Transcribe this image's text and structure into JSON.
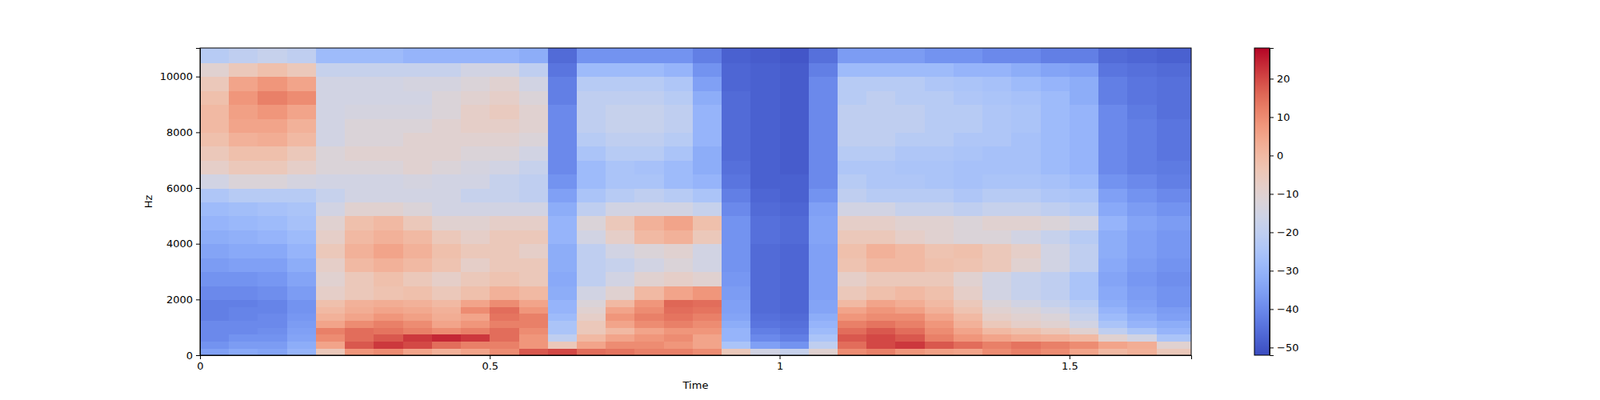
{
  "chart_data": {
    "type": "heatmap",
    "x_label": "Time",
    "y_label": "Hz",
    "xlim": [
      0,
      1.71
    ],
    "ylim": [
      0,
      11025
    ],
    "xticks": [
      0,
      0.5,
      1,
      1.5
    ],
    "yticks": [
      0,
      2000,
      4000,
      6000,
      8000,
      10000
    ],
    "zlim": [
      -52,
      28
    ],
    "zticks": [
      {
        "value": -50,
        "label": "−50"
      },
      {
        "value": -40,
        "label": "−40"
      },
      {
        "value": -30,
        "label": "−30"
      },
      {
        "value": -20,
        "label": "−20"
      },
      {
        "value": -10,
        "label": "−10"
      },
      0,
      10,
      20
    ],
    "x": [
      0,
      0.05,
      0.1,
      0.15,
      0.2,
      0.25,
      0.3,
      0.35,
      0.4,
      0.45,
      0.5,
      0.55,
      0.6,
      0.65,
      0.7,
      0.75,
      0.8,
      0.85,
      0.9,
      0.95,
      1,
      1.05,
      1.1,
      1.15,
      1.2,
      1.25,
      1.3,
      1.35,
      1.4,
      1.45,
      1.5,
      1.55,
      1.6,
      1.65
    ],
    "y": [
      0,
      250,
      500,
      750,
      1000,
      1250,
      1500,
      1750,
      2000,
      2500,
      3000,
      3500,
      4000,
      4500,
      5000,
      5500,
      6000,
      6500,
      7000,
      7500,
      8000,
      8500,
      9000,
      9500,
      10000,
      10500
    ],
    "z": [
      [
        -35,
        -33,
        -34,
        -30,
        -5,
        8,
        10,
        5,
        2,
        5,
        10,
        18,
        20,
        15,
        14,
        12,
        12,
        10,
        -5,
        -15,
        -18,
        -10,
        10,
        12,
        8,
        6,
        5,
        10,
        12,
        10,
        5,
        0,
        2,
        -5
      ],
      [
        -38,
        -36,
        -36,
        -32,
        5,
        18,
        22,
        20,
        15,
        12,
        12,
        8,
        -5,
        5,
        10,
        10,
        8,
        5,
        -25,
        -35,
        -38,
        -20,
        15,
        20,
        22,
        18,
        15,
        12,
        14,
        12,
        10,
        5,
        3,
        -10
      ],
      [
        -40,
        -38,
        -38,
        -34,
        10,
        15,
        18,
        22,
        24,
        22,
        15,
        8,
        -20,
        0,
        5,
        8,
        10,
        5,
        -30,
        -40,
        -42,
        -25,
        18,
        20,
        18,
        12,
        8,
        5,
        3,
        2,
        0,
        -10,
        -15,
        -25
      ],
      [
        -40,
        -40,
        -39,
        -35,
        12,
        15,
        14,
        12,
        10,
        12,
        15,
        10,
        -25,
        -5,
        0,
        5,
        8,
        8,
        -30,
        -42,
        -44,
        -28,
        15,
        18,
        15,
        10,
        5,
        0,
        -2,
        -5,
        -10,
        -20,
        -25,
        -30
      ],
      [
        -40,
        -40,
        -40,
        -36,
        5,
        10,
        12,
        10,
        5,
        8,
        12,
        12,
        -25,
        -5,
        5,
        10,
        12,
        10,
        -32,
        -44,
        -45,
        -30,
        12,
        14,
        12,
        8,
        2,
        -5,
        -8,
        -10,
        -15,
        -25,
        -30,
        -32
      ],
      [
        -42,
        -41,
        -40,
        -37,
        2,
        5,
        8,
        6,
        3,
        5,
        14,
        12,
        -28,
        -8,
        8,
        12,
        14,
        12,
        -34,
        -45,
        -46,
        -32,
        8,
        10,
        10,
        5,
        0,
        -8,
        -10,
        -12,
        -18,
        -28,
        -32,
        -35
      ],
      [
        -42,
        -41,
        -41,
        -38,
        0,
        3,
        5,
        4,
        2,
        10,
        15,
        8,
        -30,
        -10,
        5,
        10,
        15,
        14,
        -35,
        -46,
        -47,
        -34,
        5,
        8,
        6,
        2,
        -3,
        -10,
        -12,
        -15,
        -20,
        -30,
        -34,
        -36
      ],
      [
        -42,
        -42,
        -41,
        -38,
        -2,
        2,
        3,
        2,
        0,
        5,
        10,
        5,
        -30,
        -12,
        0,
        8,
        16,
        15,
        -35,
        -46,
        -47,
        -34,
        0,
        5,
        3,
        0,
        -5,
        -12,
        -15,
        -18,
        -22,
        -32,
        -35,
        -38
      ],
      [
        -40,
        -40,
        -39,
        -36,
        -8,
        -5,
        -3,
        -2,
        -5,
        -2,
        2,
        0,
        -32,
        -15,
        -10,
        0,
        5,
        8,
        -36,
        -46,
        -47,
        -35,
        -5,
        -2,
        0,
        -2,
        -8,
        -15,
        -18,
        -20,
        -25,
        -33,
        -36,
        -38
      ],
      [
        -38,
        -38,
        -37,
        -34,
        -10,
        -5,
        -2,
        -5,
        -8,
        -5,
        -3,
        -5,
        -33,
        -20,
        -15,
        -10,
        -8,
        -10,
        -37,
        -46,
        -47,
        -35,
        -8,
        -5,
        -5,
        -5,
        -10,
        -15,
        -18,
        -20,
        -25,
        -34,
        -37,
        -39
      ],
      [
        -36,
        -35,
        -35,
        -32,
        -8,
        0,
        2,
        0,
        -3,
        -8,
        -5,
        -5,
        -32,
        -20,
        -18,
        -15,
        -12,
        -15,
        -38,
        -46,
        -47,
        -35,
        -3,
        0,
        0,
        -2,
        -3,
        -5,
        -10,
        -15,
        -20,
        -33,
        -36,
        -38
      ],
      [
        -34,
        -33,
        -33,
        -30,
        -5,
        2,
        5,
        2,
        -2,
        -5,
        -5,
        -8,
        -32,
        -20,
        -15,
        -12,
        -10,
        -15,
        -38,
        -46,
        -47,
        -35,
        -2,
        2,
        0,
        -3,
        -2,
        -5,
        -8,
        -15,
        -20,
        -32,
        -35,
        -37
      ],
      [
        -32,
        -31,
        -30,
        -28,
        -8,
        0,
        2,
        0,
        -5,
        -8,
        -5,
        -5,
        -30,
        -15,
        -8,
        0,
        2,
        -5,
        -38,
        -45,
        -46,
        -34,
        -5,
        -5,
        -8,
        -10,
        -12,
        -12,
        -15,
        -18,
        -22,
        -32,
        -35,
        -37
      ],
      [
        -30,
        -29,
        -28,
        -26,
        -10,
        -2,
        0,
        -5,
        -10,
        -10,
        -8,
        -8,
        -30,
        -12,
        -5,
        2,
        5,
        -2,
        -38,
        -45,
        -46,
        -34,
        -8,
        -8,
        -10,
        -10,
        -12,
        -10,
        -10,
        -12,
        -15,
        -30,
        -34,
        -36
      ],
      [
        -28,
        -27,
        -26,
        -25,
        -15,
        -10,
        -10,
        -12,
        -15,
        -15,
        -15,
        -15,
        -32,
        -20,
        -15,
        -15,
        -15,
        -18,
        -40,
        -46,
        -47,
        -35,
        -15,
        -15,
        -18,
        -18,
        -20,
        -18,
        -18,
        -20,
        -22,
        -33,
        -36,
        -38
      ],
      [
        -24,
        -22,
        -22,
        -22,
        -18,
        -15,
        -15,
        -15,
        -15,
        -18,
        -18,
        -20,
        -35,
        -25,
        -22,
        -20,
        -22,
        -25,
        -42,
        -47,
        -48,
        -38,
        -20,
        -22,
        -22,
        -22,
        -24,
        -22,
        -22,
        -24,
        -25,
        -35,
        -38,
        -40
      ],
      [
        -15,
        -12,
        -12,
        -14,
        -15,
        -15,
        -15,
        -14,
        -15,
        -15,
        -18,
        -20,
        -38,
        -28,
        -25,
        -25,
        -28,
        -30,
        -44,
        -48,
        -48,
        -40,
        -22,
        -24,
        -24,
        -25,
        -26,
        -25,
        -25,
        -26,
        -28,
        -38,
        -40,
        -42
      ],
      [
        -8,
        -5,
        -5,
        -8,
        -12,
        -12,
        -12,
        -10,
        -12,
        -14,
        -15,
        -18,
        -40,
        -28,
        -25,
        -26,
        -28,
        -32,
        -45,
        -48,
        -49,
        -40,
        -24,
        -24,
        -25,
        -25,
        -26,
        -26,
        -26,
        -28,
        -30,
        -40,
        -42,
        -43
      ],
      [
        -5,
        -2,
        -2,
        -5,
        -12,
        -10,
        -10,
        -10,
        -10,
        -12,
        -12,
        -15,
        -40,
        -25,
        -22,
        -22,
        -25,
        -32,
        -46,
        -48,
        -49,
        -40,
        -22,
        -22,
        -24,
        -24,
        -25,
        -26,
        -26,
        -28,
        -30,
        -40,
        -42,
        -44
      ],
      [
        -2,
        2,
        3,
        0,
        -15,
        -12,
        -12,
        -10,
        -10,
        -10,
        -10,
        -12,
        -40,
        -22,
        -20,
        -20,
        -22,
        -30,
        -46,
        -48,
        -49,
        -40,
        -20,
        -20,
        -22,
        -22,
        -24,
        -24,
        -26,
        -28,
        -30,
        -40,
        -42,
        -44
      ],
      [
        0,
        5,
        5,
        2,
        -15,
        -12,
        -12,
        -12,
        -10,
        -8,
        -8,
        -10,
        -40,
        -20,
        -18,
        -18,
        -20,
        -30,
        -46,
        -48,
        -49,
        -40,
        -20,
        -20,
        -20,
        -22,
        -22,
        -24,
        -25,
        -28,
        -30,
        -40,
        -42,
        -44
      ],
      [
        0,
        6,
        8,
        5,
        -15,
        -14,
        -14,
        -14,
        -12,
        -8,
        -6,
        -10,
        -40,
        -20,
        -18,
        -18,
        -20,
        -30,
        -46,
        -48,
        -49,
        -40,
        -20,
        -20,
        -20,
        -22,
        -22,
        -24,
        -25,
        -28,
        -30,
        -40,
        -43,
        -45
      ],
      [
        -2,
        8,
        12,
        10,
        -15,
        -15,
        -15,
        -15,
        -12,
        -10,
        -8,
        -12,
        -42,
        -20,
        -20,
        -20,
        -22,
        -32,
        -46,
        -48,
        -49,
        -40,
        -22,
        -20,
        -22,
        -22,
        -24,
        -25,
        -26,
        -28,
        -32,
        -42,
        -44,
        -45
      ],
      [
        -5,
        5,
        8,
        5,
        -15,
        -15,
        -15,
        -14,
        -14,
        -12,
        -10,
        -15,
        -42,
        -22,
        -22,
        -22,
        -24,
        -35,
        -47,
        -48,
        -49,
        -40,
        -22,
        -22,
        -22,
        -24,
        -25,
        -26,
        -28,
        -30,
        -32,
        -42,
        -44,
        -45
      ],
      [
        -10,
        -5,
        -2,
        -5,
        -18,
        -18,
        -18,
        -18,
        -18,
        -15,
        -15,
        -20,
        -44,
        -28,
        -28,
        -28,
        -30,
        -38,
        -47,
        -48,
        -49,
        -42,
        -28,
        -28,
        -28,
        -28,
        -30,
        -30,
        -32,
        -34,
        -35,
        -44,
        -45,
        -46
      ],
      [
        -22,
        -20,
        -18,
        -20,
        -28,
        -28,
        -28,
        -30,
        -30,
        -30,
        -30,
        -32,
        -46,
        -38,
        -38,
        -38,
        -38,
        -42,
        -48,
        -49,
        -50,
        -45,
        -36,
        -36,
        -36,
        -38,
        -38,
        -40,
        -40,
        -42,
        -42,
        -46,
        -47,
        -48
      ]
    ]
  }
}
